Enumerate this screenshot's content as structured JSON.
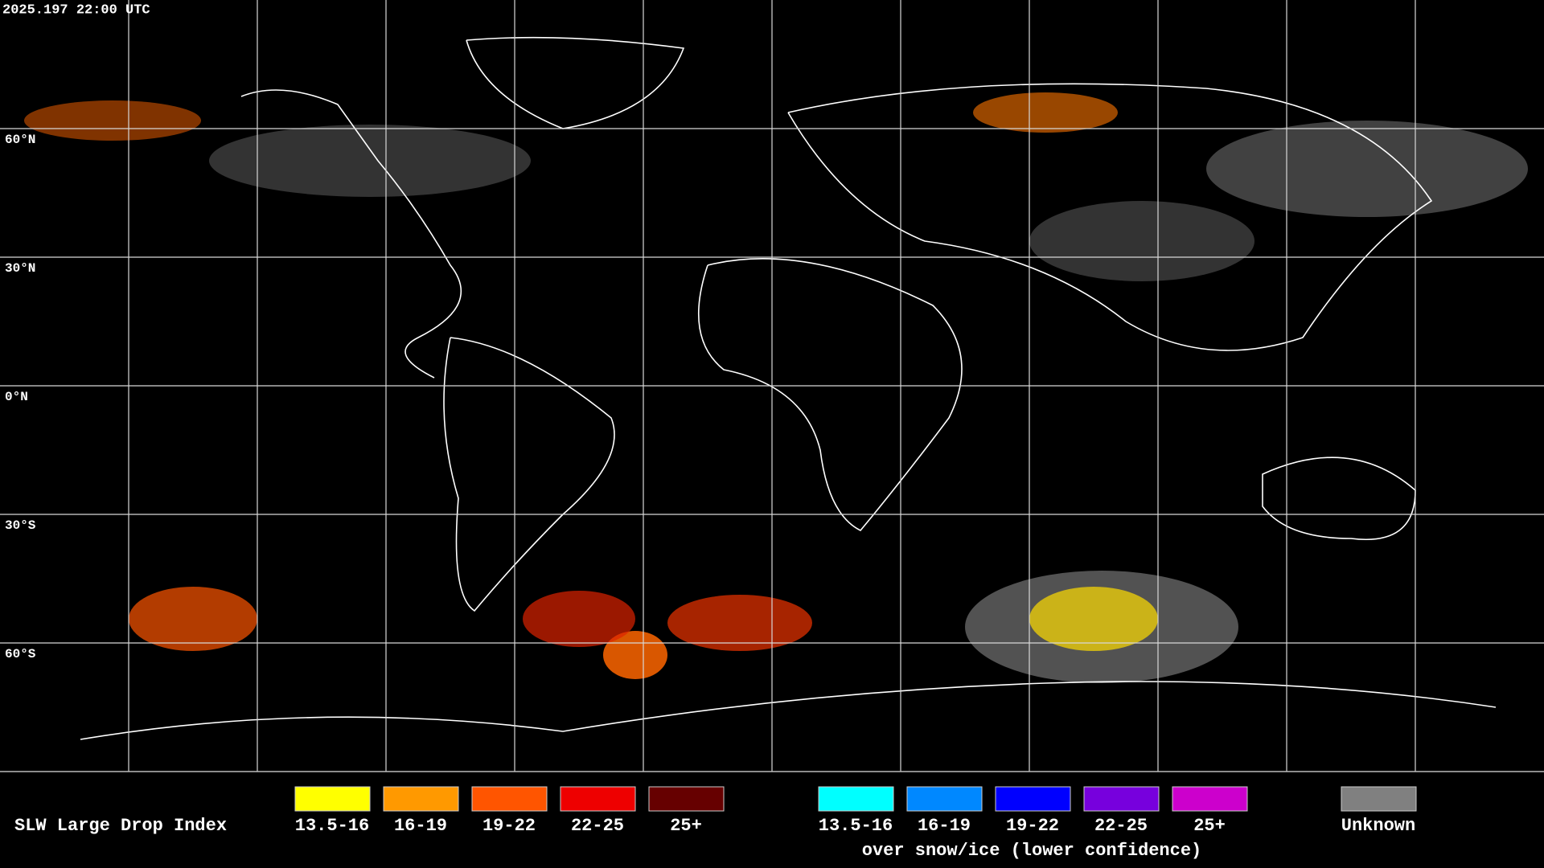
{
  "header": {
    "timestamp": "2025.197 22:00 UTC"
  },
  "map": {
    "lat_labels": [
      "60°N",
      "30°N",
      "0°N",
      "30°S",
      "60°S"
    ]
  },
  "legend": {
    "title": "SLW Large Drop Index",
    "warm": [
      {
        "label": "13.5-16",
        "color": "#ffff00"
      },
      {
        "label": "16-19",
        "color": "#ff9900"
      },
      {
        "label": "19-22",
        "color": "#ff5500"
      },
      {
        "label": "22-25",
        "color": "#ee0000"
      },
      {
        "label": "25+",
        "color": "#660000"
      }
    ],
    "cold": [
      {
        "label": "13.5-16",
        "color": "#00ffff"
      },
      {
        "label": "16-19",
        "color": "#0088ff"
      },
      {
        "label": "19-22",
        "color": "#0000ff"
      },
      {
        "label": "22-25",
        "color": "#7700dd"
      },
      {
        "label": "25+",
        "color": "#cc00cc"
      }
    ],
    "cold_note": "over snow/ice (lower confidence)",
    "unknown": {
      "label": "Unknown",
      "color": "#808080"
    }
  }
}
